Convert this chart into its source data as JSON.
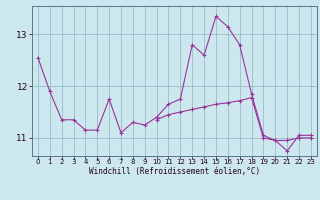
{
  "xlabel": "Windchill (Refroidissement éolien,°C)",
  "background_color": "#cce8ee",
  "grid_color": "#99bbcc",
  "line_color": "#993399",
  "xlim": [
    -0.5,
    23.5
  ],
  "ylim": [
    10.65,
    13.55
  ],
  "yticks": [
    11,
    12,
    13
  ],
  "xticks": [
    0,
    1,
    2,
    3,
    4,
    5,
    6,
    7,
    8,
    9,
    10,
    11,
    12,
    13,
    14,
    15,
    16,
    17,
    18,
    19,
    20,
    21,
    22,
    23
  ],
  "series": [
    [
      12.55,
      11.9,
      11.35,
      11.35,
      11.15,
      11.15,
      11.75,
      11.1,
      11.3,
      11.25,
      11.4,
      11.65,
      11.75,
      12.8,
      12.6,
      13.35,
      13.15,
      12.8,
      11.85,
      11.05,
      10.95,
      10.75,
      11.05,
      11.05
    ],
    [
      null,
      null,
      null,
      null,
      null,
      null,
      null,
      null,
      null,
      null,
      11.35,
      11.45,
      11.5,
      11.55,
      11.6,
      11.65,
      11.68,
      11.72,
      11.78,
      11.0,
      10.95,
      10.95,
      11.0,
      11.0
    ]
  ]
}
